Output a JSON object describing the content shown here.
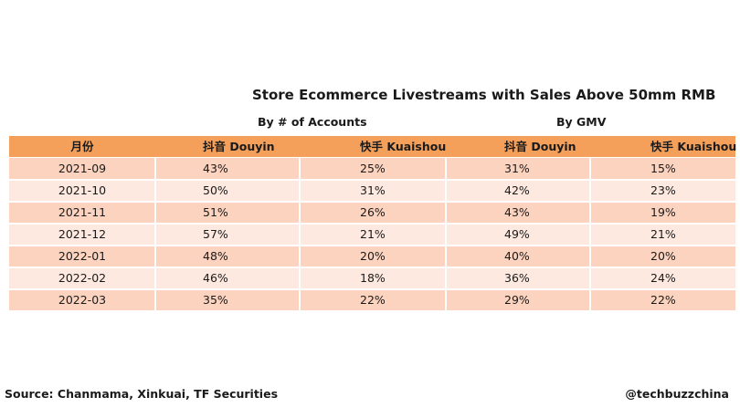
{
  "title": "Store Ecommerce Livestreams with Sales Above 50mm RMB",
  "subtitles": {
    "accounts": "By # of Accounts",
    "gmv": "By GMV"
  },
  "chart_data": {
    "type": "table",
    "title": "Store Ecommerce Livestreams with Sales Above 50mm RMB",
    "groups": [
      {
        "name": "By # of Accounts",
        "columns": [
          "抖音 Douyin",
          "快手 Kuaishou"
        ]
      },
      {
        "name": "By GMV",
        "columns": [
          "抖音 Douyin",
          "快手 Kuaishou"
        ]
      }
    ],
    "headers": [
      "月份",
      "抖音 Douyin",
      "快手 Kuaishou",
      "抖音 Douyin",
      "快手 Kuaishou"
    ],
    "rows": [
      [
        "2021-09",
        "43%",
        "25%",
        "31%",
        "15%"
      ],
      [
        "2021-10",
        "50%",
        "31%",
        "42%",
        "23%"
      ],
      [
        "2021-11",
        "51%",
        "26%",
        "43%",
        "19%"
      ],
      [
        "2021-12",
        "57%",
        "21%",
        "49%",
        "21%"
      ],
      [
        "2022-01",
        "48%",
        "20%",
        "40%",
        "20%"
      ],
      [
        "2022-02",
        "46%",
        "18%",
        "36%",
        "24%"
      ],
      [
        "2022-03",
        "35%",
        "22%",
        "29%",
        "22%"
      ]
    ]
  },
  "footer": {
    "source": "Source: Chanmama, Xinkuai, TF Securities",
    "brand": "@techbuzzchina"
  },
  "colors": {
    "header": "#f5a05a",
    "row_odd": "#fbd3bf",
    "row_even": "#fde9e0"
  }
}
